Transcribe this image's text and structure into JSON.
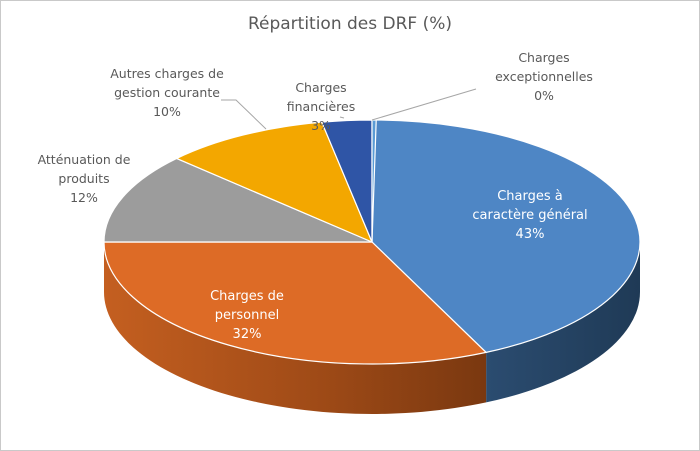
{
  "chart_data": {
    "type": "pie",
    "style": "3d",
    "title": "Répartition des DRF (%)",
    "slices": [
      {
        "label": [
          "Charges à",
          "caractère général"
        ],
        "percent": 43,
        "value_label": "43%",
        "color": "#4e86c5",
        "side_color": "#2e5076",
        "label_position": "inside"
      },
      {
        "label": [
          "Charges de",
          "personnel"
        ],
        "percent": 32,
        "value_label": "32%",
        "color": "#dd6b26",
        "side_color": "#a44f18",
        "label_position": "inside"
      },
      {
        "label": [
          "Atténuation de",
          "produits"
        ],
        "percent": 12,
        "value_label": "12%",
        "color": "#9c9c9c",
        "side_color": "#6e6e6e",
        "label_position": "outside"
      },
      {
        "label": [
          "Autres charges de",
          "gestion courante"
        ],
        "percent": 10,
        "value_label": "10%",
        "color": "#f3a700",
        "side_color": "#b07a00",
        "label_position": "outside"
      },
      {
        "label": [
          "Charges",
          "financières"
        ],
        "percent": 3,
        "value_label": "3%",
        "color": "#2f55a6",
        "side_color": "#1d356a",
        "label_position": "outside"
      },
      {
        "label": [
          "Charges",
          "exceptionnelles"
        ],
        "percent": 0,
        "value_label": "0%",
        "color": "#5b9bd5",
        "side_color": "#3a6b96",
        "label_position": "outside"
      }
    ],
    "legend": "none"
  }
}
